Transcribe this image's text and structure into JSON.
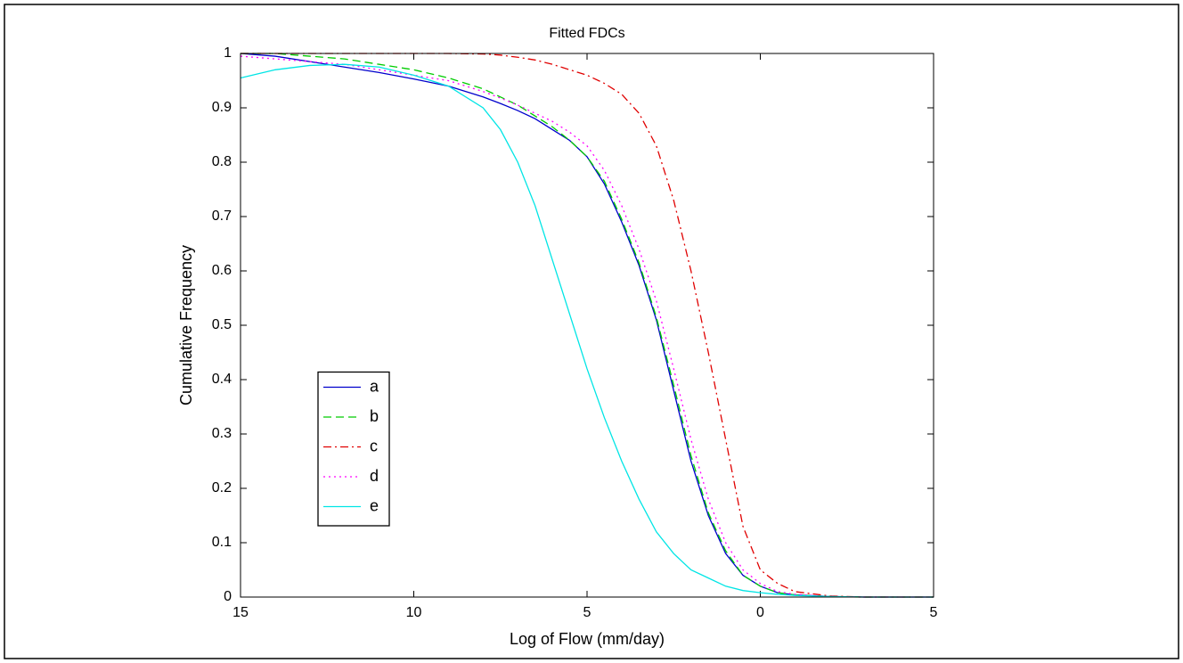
{
  "chart_data": {
    "type": "line",
    "title": "Fitted FDCs",
    "xlabel": "Log of Flow (mm/day)",
    "ylabel": "Cumulative Frequency",
    "x": [
      -15,
      -14,
      -13,
      -12,
      -11,
      -10,
      -9,
      -8,
      -7.5,
      -7,
      -6.5,
      -6,
      -5.5,
      -5,
      -4.5,
      -4,
      -3.5,
      -3,
      -2.5,
      -2,
      -1.5,
      -1,
      -0.5,
      0,
      0.5,
      1,
      2,
      3,
      4,
      5
    ],
    "series": [
      {
        "name": "a",
        "color": "#0000cc",
        "dash": "solid",
        "values": [
          1,
          0.995,
          0.985,
          0.975,
          0.965,
          0.953,
          0.94,
          0.92,
          0.908,
          0.895,
          0.88,
          0.86,
          0.84,
          0.81,
          0.76,
          0.69,
          0.61,
          0.51,
          0.38,
          0.25,
          0.15,
          0.08,
          0.04,
          0.02,
          0.008,
          0.004,
          0.001,
          0,
          0,
          0
        ]
      },
      {
        "name": "b",
        "color": "#00cc00",
        "dash": "dashed",
        "values": [
          1,
          1,
          0.995,
          0.99,
          0.98,
          0.97,
          0.955,
          0.935,
          0.92,
          0.905,
          0.885,
          0.865,
          0.84,
          0.81,
          0.765,
          0.695,
          0.615,
          0.515,
          0.39,
          0.26,
          0.155,
          0.085,
          0.04,
          0.02,
          0.008,
          0.004,
          0.001,
          0,
          0,
          0
        ]
      },
      {
        "name": "c",
        "color": "#e00000",
        "dash": "dashdot",
        "values": [
          1,
          1,
          1,
          1,
          1,
          1,
          1,
          0.999,
          0.997,
          0.993,
          0.988,
          0.98,
          0.97,
          0.96,
          0.945,
          0.925,
          0.89,
          0.83,
          0.73,
          0.6,
          0.45,
          0.29,
          0.13,
          0.05,
          0.025,
          0.01,
          0.002,
          0,
          0,
          0
        ]
      },
      {
        "name": "d",
        "color": "#ff00ff",
        "dash": "dotted",
        "values": [
          0.995,
          0.99,
          0.985,
          0.98,
          0.97,
          0.96,
          0.95,
          0.93,
          0.918,
          0.905,
          0.89,
          0.875,
          0.855,
          0.83,
          0.785,
          0.72,
          0.64,
          0.545,
          0.42,
          0.29,
          0.18,
          0.1,
          0.05,
          0.025,
          0.01,
          0.005,
          0.001,
          0,
          0,
          0
        ]
      },
      {
        "name": "e",
        "color": "#00e5e5",
        "dash": "solid",
        "values": [
          0.955,
          0.97,
          0.978,
          0.98,
          0.975,
          0.96,
          0.94,
          0.9,
          0.86,
          0.8,
          0.72,
          0.62,
          0.52,
          0.42,
          0.33,
          0.25,
          0.18,
          0.12,
          0.08,
          0.05,
          0.035,
          0.02,
          0.012,
          0.008,
          0.005,
          0.003,
          0.001,
          0,
          0,
          0
        ]
      }
    ],
    "xlim": [
      -15,
      5
    ],
    "xticks": [
      {
        "value": -15,
        "label": "15"
      },
      {
        "value": -10,
        "label": "10"
      },
      {
        "value": -5,
        "label": "5"
      },
      0,
      5
    ],
    "ylim": [
      0,
      1
    ],
    "yticks": [
      0,
      0.1,
      0.2,
      0.3,
      0.4,
      0.5,
      0.6,
      0.7,
      0.8,
      0.9,
      1
    ],
    "grid": false,
    "legend": "lower-left"
  }
}
